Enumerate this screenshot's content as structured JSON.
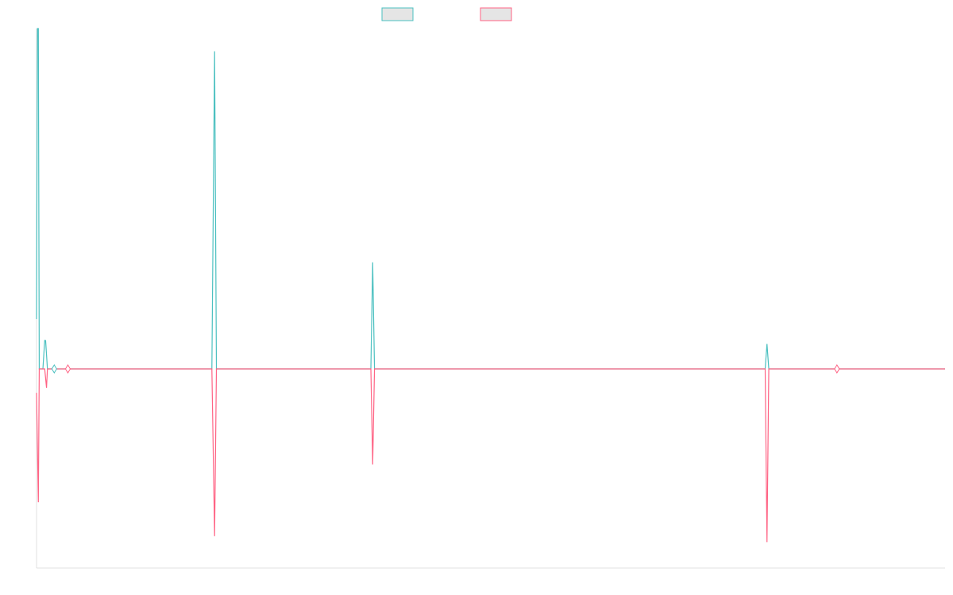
{
  "chart_data": {
    "type": "line",
    "legend": {
      "position": "top-center"
    },
    "grid": false,
    "x_range": [
      0,
      1000
    ],
    "y_range": [
      -1,
      1.35
    ],
    "series": [
      {
        "color": "#4bc0c0",
        "fill": "#e5e5e5",
        "points": [
          [
            0,
            0.22
          ],
          [
            1,
            1.5
          ],
          [
            2,
            1.5
          ],
          [
            3,
            0.0
          ],
          [
            7,
            0.0
          ],
          [
            9,
            0.1253
          ],
          [
            10,
            0.125
          ],
          [
            12,
            0.0
          ],
          [
            19,
            0.0
          ],
          [
            20,
            0.0
          ],
          [
            34,
            0.0
          ],
          [
            35,
            0.0
          ],
          [
            193,
            0.0
          ],
          [
            196,
            1.4
          ],
          [
            198,
            0.0
          ],
          [
            368,
            0.0
          ],
          [
            370,
            0.47
          ],
          [
            372,
            0.0
          ],
          [
            802,
            0.0
          ],
          [
            804,
            0.11
          ],
          [
            806,
            0.0
          ],
          [
            880,
            0.0
          ],
          [
            882,
            0.0
          ],
          [
            1000,
            0.0
          ]
        ]
      },
      {
        "color": "#ff6384",
        "fill": "#e5e5e5",
        "points": [
          [
            0,
            -0.12
          ],
          [
            2,
            -0.67
          ],
          [
            3,
            0.0
          ],
          [
            9,
            0.0
          ],
          [
            11,
            -0.095
          ],
          [
            12,
            0.0
          ],
          [
            19,
            0.0
          ],
          [
            20,
            0.0
          ],
          [
            34,
            0.0
          ],
          [
            35,
            0.0
          ],
          [
            193,
            0.0
          ],
          [
            196,
            -0.84
          ],
          [
            198,
            0.0
          ],
          [
            368,
            0.0
          ],
          [
            370,
            -0.48
          ],
          [
            372,
            0.0
          ],
          [
            802,
            0.0
          ],
          [
            804,
            -0.87
          ],
          [
            806,
            0.0
          ],
          [
            880,
            0.0
          ],
          [
            882,
            0.0
          ],
          [
            1000,
            0.0
          ]
        ]
      }
    ],
    "markers": [
      {
        "series": 0,
        "x": 19.5,
        "y": 0.0
      },
      {
        "series": 1,
        "x": 34.5,
        "y": 0.0
      },
      {
        "series": 1,
        "x": 881,
        "y": 0.0
      }
    ]
  }
}
